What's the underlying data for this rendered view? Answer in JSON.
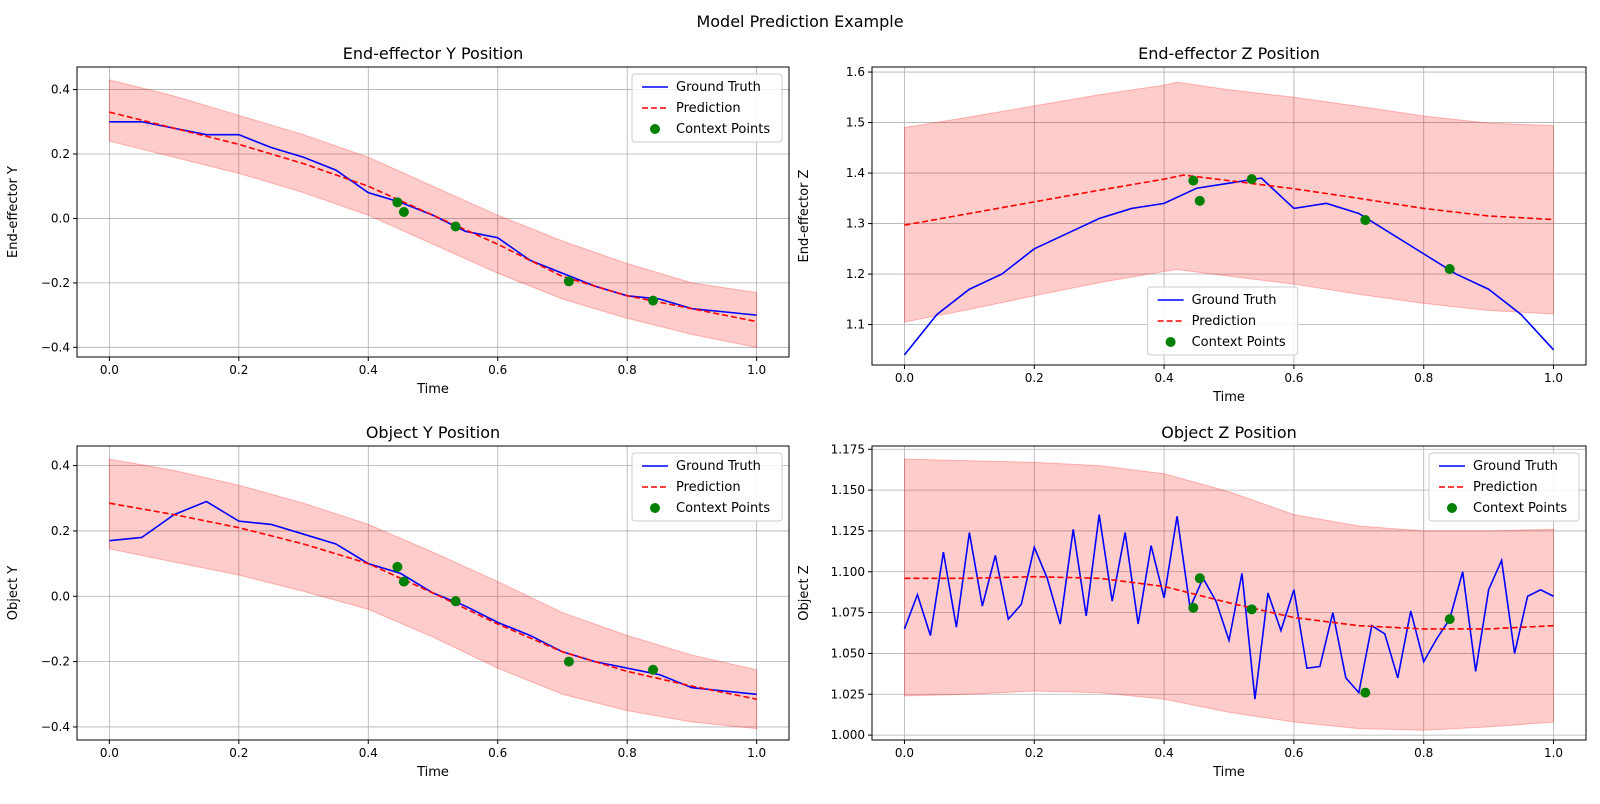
{
  "figure": {
    "title": "Model Prediction Example"
  },
  "colors": {
    "truth": "#0000ff",
    "pred": "#ff0000",
    "band": "#ff0000",
    "context": "#008000",
    "grid": "#b0b0b0"
  },
  "legend_labels": [
    "Ground Truth",
    "Prediction",
    "Context Points"
  ],
  "chart_data": [
    {
      "type": "line",
      "title": "End-effector Y Position",
      "xlabel": "Time",
      "ylabel": "End-effector Y",
      "xlim": [
        -0.05,
        1.05
      ],
      "ylim": [
        -0.43,
        0.47
      ],
      "xticks": [
        0.0,
        0.2,
        0.4,
        0.6,
        0.8,
        1.0
      ],
      "xtick_labels": [
        "0.0",
        "0.2",
        "0.4",
        "0.6",
        "0.8",
        "1.0"
      ],
      "yticks": [
        -0.4,
        -0.2,
        0.0,
        0.2,
        0.4
      ],
      "ytick_labels": [
        "−0.4",
        "−0.2",
        "0.0",
        "0.2",
        "0.4"
      ],
      "grid": true,
      "legend_position": "upper right",
      "ground_truth": {
        "x": [
          0,
          0.05,
          0.1,
          0.15,
          0.2,
          0.25,
          0.3,
          0.35,
          0.4,
          0.45,
          0.5,
          0.55,
          0.6,
          0.65,
          0.7,
          0.75,
          0.8,
          0.85,
          0.9,
          0.95,
          1.0
        ],
        "y": [
          0.3,
          0.3,
          0.28,
          0.26,
          0.26,
          0.22,
          0.19,
          0.15,
          0.08,
          0.05,
          0.01,
          -0.04,
          -0.06,
          -0.13,
          -0.17,
          -0.21,
          -0.24,
          -0.25,
          -0.28,
          -0.29,
          -0.3
        ]
      },
      "prediction": {
        "x": [
          0,
          0.1,
          0.2,
          0.3,
          0.4,
          0.5,
          0.6,
          0.7,
          0.8,
          0.9,
          1.0
        ],
        "y": [
          0.33,
          0.28,
          0.23,
          0.17,
          0.1,
          0.01,
          -0.08,
          -0.18,
          -0.24,
          -0.28,
          -0.32
        ]
      },
      "band": {
        "x": [
          0,
          0.1,
          0.2,
          0.3,
          0.4,
          0.5,
          0.6,
          0.7,
          0.8,
          0.9,
          1.0
        ],
        "lower": [
          0.24,
          0.19,
          0.14,
          0.08,
          0.01,
          -0.08,
          -0.17,
          -0.25,
          -0.31,
          -0.36,
          -0.4
        ],
        "upper": [
          0.43,
          0.38,
          0.32,
          0.26,
          0.19,
          0.1,
          0.01,
          -0.07,
          -0.14,
          -0.2,
          -0.23
        ]
      },
      "context_points": {
        "x": [
          0.445,
          0.455,
          0.535,
          0.71,
          0.84
        ],
        "y": [
          0.05,
          0.02,
          -0.025,
          -0.195,
          -0.255
        ]
      }
    },
    {
      "type": "line",
      "title": "End-effector Z Position",
      "xlabel": "Time",
      "ylabel": "End-effector Z",
      "xlim": [
        -0.05,
        1.05
      ],
      "ylim": [
        1.02,
        1.61
      ],
      "xticks": [
        0.0,
        0.2,
        0.4,
        0.6,
        0.8,
        1.0
      ],
      "xtick_labels": [
        "0.0",
        "0.2",
        "0.4",
        "0.6",
        "0.8",
        "1.0"
      ],
      "yticks": [
        1.1,
        1.2,
        1.3,
        1.4,
        1.5,
        1.6
      ],
      "ytick_labels": [
        "1.1",
        "1.2",
        "1.3",
        "1.4",
        "1.5",
        "1.6"
      ],
      "grid": true,
      "legend_position": "lower center",
      "ground_truth": {
        "x": [
          0,
          0.05,
          0.1,
          0.15,
          0.2,
          0.25,
          0.3,
          0.35,
          0.4,
          0.45,
          0.5,
          0.55,
          0.6,
          0.65,
          0.7,
          0.75,
          0.8,
          0.85,
          0.9,
          0.95,
          1.0
        ],
        "y": [
          1.04,
          1.12,
          1.17,
          1.2,
          1.25,
          1.28,
          1.31,
          1.33,
          1.34,
          1.37,
          1.38,
          1.39,
          1.33,
          1.34,
          1.32,
          1.28,
          1.24,
          1.2,
          1.17,
          1.12,
          1.05
        ]
      },
      "prediction": {
        "x": [
          0,
          0.1,
          0.2,
          0.3,
          0.4,
          0.43,
          0.5,
          0.6,
          0.7,
          0.8,
          0.9,
          1.0
        ],
        "y": [
          1.297,
          1.32,
          1.343,
          1.366,
          1.388,
          1.396,
          1.385,
          1.369,
          1.35,
          1.33,
          1.315,
          1.308
        ]
      },
      "band": {
        "x": [
          0,
          0.1,
          0.2,
          0.3,
          0.4,
          0.42,
          0.5,
          0.6,
          0.7,
          0.8,
          0.9,
          1.0
        ],
        "lower": [
          1.105,
          1.13,
          1.157,
          1.183,
          1.205,
          1.209,
          1.196,
          1.18,
          1.16,
          1.142,
          1.128,
          1.121
        ],
        "upper": [
          1.49,
          1.511,
          1.533,
          1.555,
          1.574,
          1.58,
          1.565,
          1.55,
          1.532,
          1.513,
          1.499,
          1.494
        ]
      },
      "context_points": {
        "x": [
          0.445,
          0.455,
          0.535,
          0.71,
          0.84
        ],
        "y": [
          1.385,
          1.345,
          1.388,
          1.307,
          1.21
        ]
      }
    },
    {
      "type": "line",
      "title": "Object Y Position",
      "xlabel": "Time",
      "ylabel": "Object Y",
      "xlim": [
        -0.05,
        1.05
      ],
      "ylim": [
        -0.44,
        0.46
      ],
      "xticks": [
        0.0,
        0.2,
        0.4,
        0.6,
        0.8,
        1.0
      ],
      "xtick_labels": [
        "0.0",
        "0.2",
        "0.4",
        "0.6",
        "0.8",
        "1.0"
      ],
      "yticks": [
        -0.4,
        -0.2,
        0.0,
        0.2,
        0.4
      ],
      "ytick_labels": [
        "−0.4",
        "−0.2",
        "0.0",
        "0.2",
        "0.4"
      ],
      "grid": true,
      "legend_position": "upper right",
      "ground_truth": {
        "x": [
          0,
          0.05,
          0.1,
          0.15,
          0.2,
          0.25,
          0.3,
          0.35,
          0.4,
          0.45,
          0.5,
          0.55,
          0.6,
          0.65,
          0.7,
          0.75,
          0.8,
          0.85,
          0.9,
          0.95,
          1.0
        ],
        "y": [
          0.17,
          0.18,
          0.25,
          0.29,
          0.23,
          0.22,
          0.19,
          0.16,
          0.1,
          0.07,
          0.01,
          -0.03,
          -0.08,
          -0.12,
          -0.17,
          -0.2,
          -0.22,
          -0.24,
          -0.28,
          -0.29,
          -0.3
        ]
      },
      "prediction": {
        "x": [
          0,
          0.1,
          0.2,
          0.3,
          0.4,
          0.5,
          0.6,
          0.7,
          0.8,
          0.9,
          1.0
        ],
        "y": [
          0.285,
          0.25,
          0.21,
          0.16,
          0.1,
          0.01,
          -0.085,
          -0.17,
          -0.23,
          -0.275,
          -0.315
        ]
      },
      "band": {
        "x": [
          0,
          0.1,
          0.2,
          0.3,
          0.4,
          0.5,
          0.6,
          0.7,
          0.8,
          0.9,
          1.0
        ],
        "lower": [
          0.145,
          0.105,
          0.065,
          0.015,
          -0.04,
          -0.125,
          -0.22,
          -0.3,
          -0.35,
          -0.385,
          -0.405
        ],
        "upper": [
          0.42,
          0.385,
          0.34,
          0.285,
          0.22,
          0.135,
          0.045,
          -0.05,
          -0.12,
          -0.18,
          -0.225
        ]
      },
      "context_points": {
        "x": [
          0.445,
          0.455,
          0.535,
          0.71,
          0.84
        ],
        "y": [
          0.09,
          0.045,
          -0.015,
          -0.2,
          -0.225
        ]
      }
    },
    {
      "type": "line",
      "title": "Object Z Position",
      "xlabel": "Time",
      "ylabel": "Object Z",
      "xlim": [
        -0.05,
        1.05
      ],
      "ylim": [
        0.997,
        1.177
      ],
      "xticks": [
        0.0,
        0.2,
        0.4,
        0.6,
        0.8,
        1.0
      ],
      "xtick_labels": [
        "0.0",
        "0.2",
        "0.4",
        "0.6",
        "0.8",
        "1.0"
      ],
      "yticks": [
        1.0,
        1.025,
        1.05,
        1.075,
        1.1,
        1.125,
        1.15,
        1.175
      ],
      "ytick_labels": [
        "1.000",
        "1.025",
        "1.050",
        "1.075",
        "1.100",
        "1.125",
        "1.150",
        "1.175"
      ],
      "grid": true,
      "legend_position": "upper right",
      "ground_truth": {
        "x": [
          0,
          0.02,
          0.04,
          0.06,
          0.08,
          0.1,
          0.12,
          0.14,
          0.16,
          0.18,
          0.2,
          0.22,
          0.24,
          0.26,
          0.28,
          0.3,
          0.32,
          0.34,
          0.36,
          0.38,
          0.4,
          0.42,
          0.44,
          0.46,
          0.48,
          0.5,
          0.52,
          0.54,
          0.56,
          0.58,
          0.6,
          0.62,
          0.64,
          0.66,
          0.68,
          0.7,
          0.72,
          0.74,
          0.76,
          0.78,
          0.8,
          0.82,
          0.84,
          0.86,
          0.88,
          0.9,
          0.92,
          0.94,
          0.96,
          0.98,
          1.0
        ],
        "y": [
          1.065,
          1.086,
          1.061,
          1.112,
          1.066,
          1.124,
          1.079,
          1.11,
          1.071,
          1.08,
          1.115,
          1.096,
          1.068,
          1.126,
          1.073,
          1.135,
          1.082,
          1.124,
          1.068,
          1.116,
          1.084,
          1.134,
          1.078,
          1.096,
          1.082,
          1.058,
          1.099,
          1.022,
          1.087,
          1.064,
          1.089,
          1.041,
          1.042,
          1.075,
          1.035,
          1.026,
          1.067,
          1.062,
          1.035,
          1.076,
          1.045,
          1.059,
          1.071,
          1.1,
          1.039,
          1.089,
          1.107,
          1.05,
          1.085,
          1.089,
          1.085
        ]
      },
      "prediction": {
        "x": [
          0,
          0.1,
          0.2,
          0.3,
          0.4,
          0.5,
          0.6,
          0.7,
          0.8,
          0.9,
          1.0
        ],
        "y": [
          1.096,
          1.096,
          1.097,
          1.096,
          1.091,
          1.081,
          1.072,
          1.067,
          1.065,
          1.065,
          1.067
        ]
      },
      "band": {
        "x": [
          0,
          0.1,
          0.2,
          0.3,
          0.4,
          0.5,
          0.6,
          0.7,
          0.8,
          0.9,
          1.0
        ],
        "lower": [
          1.024,
          1.025,
          1.027,
          1.026,
          1.022,
          1.014,
          1.008,
          1.004,
          1.003,
          1.005,
          1.008
        ],
        "upper": [
          1.169,
          1.168,
          1.167,
          1.165,
          1.16,
          1.149,
          1.135,
          1.128,
          1.125,
          1.125,
          1.126
        ]
      },
      "context_points": {
        "x": [
          0.445,
          0.455,
          0.535,
          0.71,
          0.84
        ],
        "y": [
          1.078,
          1.096,
          1.077,
          1.026,
          1.071
        ]
      }
    }
  ]
}
